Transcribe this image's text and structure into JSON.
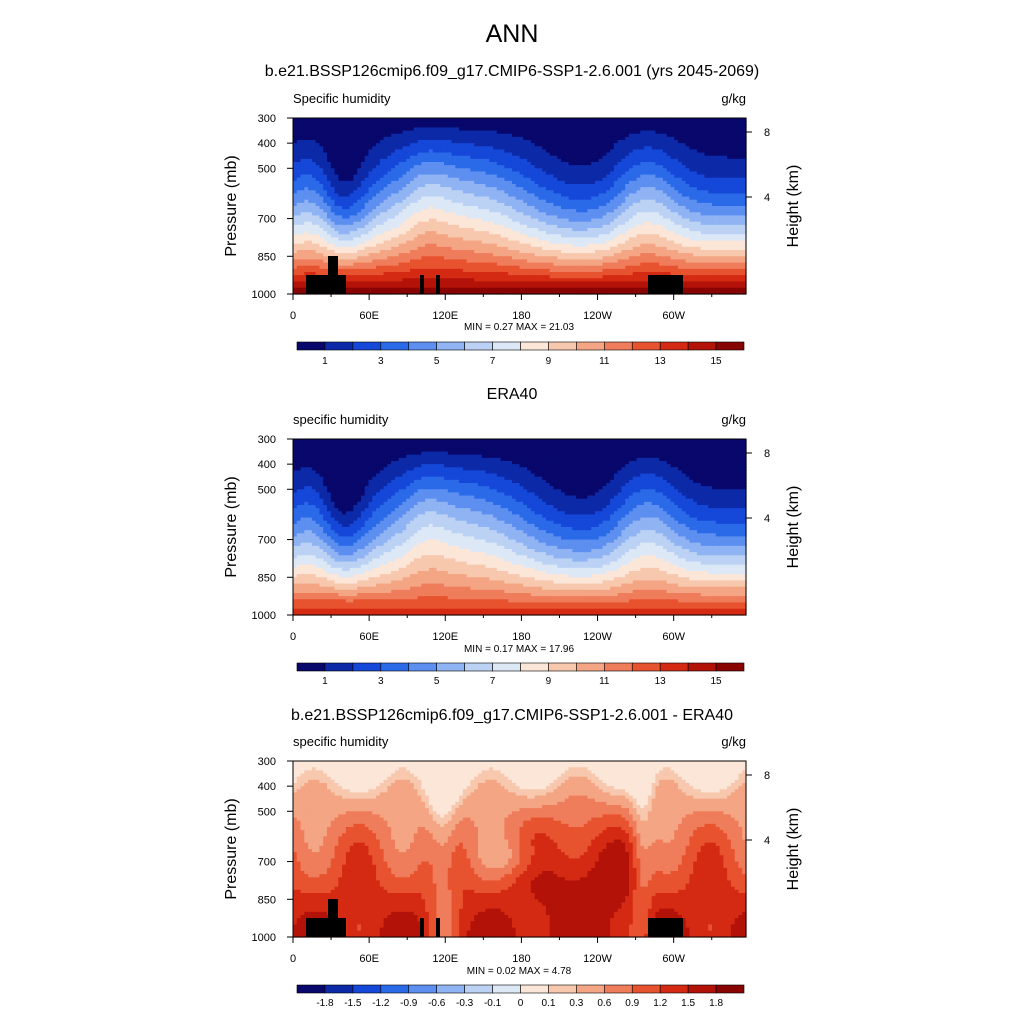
{
  "figure": {
    "title": "ANN"
  },
  "colors": {
    "palette": [
      "#08076b",
      "#0c2aa8",
      "#1547d8",
      "#2a6ae8",
      "#5d8ff0",
      "#8fb3f3",
      "#bcd2f5",
      "#dde8f7",
      "#fbe6d8",
      "#f7c8ad",
      "#f4a584",
      "#ef7c5b",
      "#e8532f",
      "#d42a13",
      "#b31208",
      "#880403"
    ]
  },
  "chart_data": [
    {
      "type": "heatmap",
      "title": "b.e21.BSSP126cmip6.f09_g17.CMIP6-SSP1-2.6.001 (yrs 2045-2069)",
      "left_label": "Specific humidity",
      "right_label": "g/kg",
      "ylabel": "Pressure (mb)",
      "y2label": "Height (km)",
      "yticks": [
        "300",
        "400",
        "500",
        "700",
        "850",
        "1000"
      ],
      "ytick_values": [
        300,
        400,
        500,
        700,
        850,
        1000
      ],
      "ylim": [
        300,
        1000
      ],
      "y2ticks": [
        "8",
        "4"
      ],
      "y2tick_values": [
        8,
        4
      ],
      "xticks": [
        "0",
        "60E",
        "120E",
        "180",
        "120W",
        "60W"
      ],
      "xtick_values": [
        0,
        60,
        120,
        180,
        240,
        300
      ],
      "xlim": [
        0,
        357
      ],
      "stats": "MIN =   0.27  MAX =  21.03",
      "colorbar_labels": [
        "1",
        "3",
        "5",
        "7",
        "9",
        "11",
        "13",
        "15"
      ],
      "colorbar_levels": [
        0,
        1,
        2,
        3,
        4,
        5,
        6,
        7,
        8,
        9,
        10,
        11,
        12,
        13,
        14,
        15,
        16
      ],
      "min": 0.27,
      "max": 21.03,
      "has_terrain": true
    },
    {
      "type": "heatmap",
      "title": "ERA40",
      "left_label": "specific humidity",
      "right_label": "g/kg",
      "ylabel": "Pressure (mb)",
      "y2label": "Height (km)",
      "yticks": [
        "300",
        "400",
        "500",
        "700",
        "850",
        "1000"
      ],
      "ytick_values": [
        300,
        400,
        500,
        700,
        850,
        1000
      ],
      "ylim": [
        300,
        1000
      ],
      "y2ticks": [
        "8",
        "4"
      ],
      "y2tick_values": [
        8,
        4
      ],
      "xticks": [
        "0",
        "60E",
        "120E",
        "180",
        "120W",
        "60W"
      ],
      "xtick_values": [
        0,
        60,
        120,
        180,
        240,
        300
      ],
      "xlim": [
        0,
        357
      ],
      "stats": "MIN =   0.17  MAX =  17.96",
      "colorbar_labels": [
        "1",
        "3",
        "5",
        "7",
        "9",
        "11",
        "13",
        "15"
      ],
      "colorbar_levels": [
        0,
        1,
        2,
        3,
        4,
        5,
        6,
        7,
        8,
        9,
        10,
        11,
        12,
        13,
        14,
        15,
        16
      ],
      "min": 0.17,
      "max": 17.96,
      "has_terrain": false
    },
    {
      "type": "heatmap",
      "title": "b.e21.BSSP126cmip6.f09_g17.CMIP6-SSP1-2.6.001 - ERA40",
      "left_label": "specific humidity",
      "right_label": "g/kg",
      "ylabel": "Pressure (mb)",
      "y2label": "Height (km)",
      "yticks": [
        "300",
        "400",
        "500",
        "700",
        "850",
        "1000"
      ],
      "ytick_values": [
        300,
        400,
        500,
        700,
        850,
        1000
      ],
      "ylim": [
        300,
        1000
      ],
      "y2ticks": [
        "8",
        "4"
      ],
      "y2tick_values": [
        8,
        4
      ],
      "xticks": [
        "0",
        "60E",
        "120E",
        "180",
        "120W",
        "60W"
      ],
      "xtick_values": [
        0,
        60,
        120,
        180,
        240,
        300
      ],
      "xlim": [
        0,
        357
      ],
      "stats": "MIN =   0.02  MAX =   4.78",
      "colorbar_labels": [
        "-1.8",
        "-1.5",
        "-1.2",
        "-0.9",
        "-0.6",
        "-0.3",
        "-0.1",
        "0",
        "0.1",
        "0.3",
        "0.6",
        "0.9",
        "1.2",
        "1.5",
        "1.8"
      ],
      "colorbar_levels": [
        -1.8,
        -1.5,
        -1.2,
        -0.9,
        -0.6,
        -0.3,
        -0.1,
        0,
        0.1,
        0.3,
        0.6,
        0.9,
        1.2,
        1.5,
        1.8
      ],
      "min": 0.02,
      "max": 4.78,
      "has_terrain": true
    }
  ]
}
